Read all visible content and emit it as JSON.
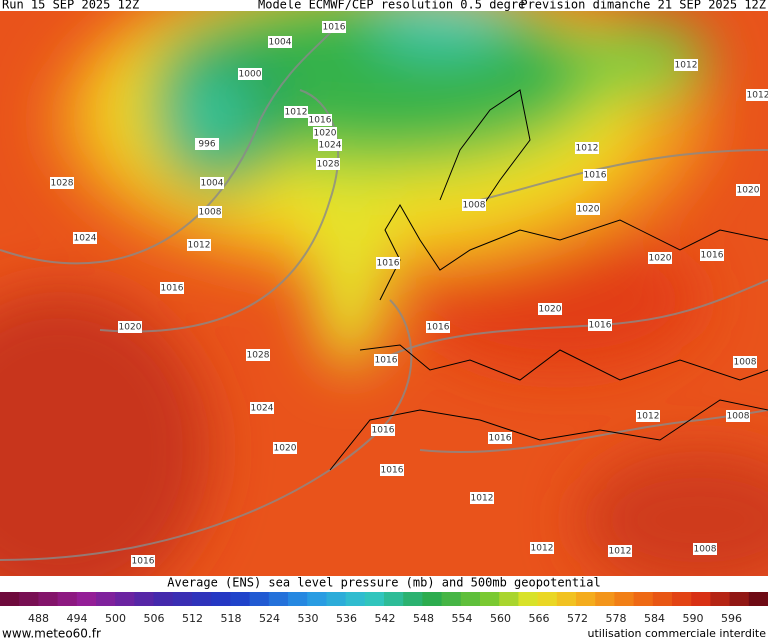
{
  "header": {
    "run": "Run 15 SEP 2025 12Z",
    "model": "Modele ECMWF/CEP resolution 0.5 degre",
    "forecast": "Prevision dimanche 21 SEP 2025 12Z"
  },
  "isobar_labels": [
    1004,
    1016,
    1000,
    1012,
    1016,
    1020,
    1024,
    1028,
    996,
    1004,
    1008,
    1012,
    1028,
    1024,
    1016,
    1020,
    1028,
    1024,
    1020,
    1016,
    1016,
    1016,
    1016,
    1016,
    1016,
    1016,
    1012,
    1012,
    1012,
    1008,
    1012,
    1008,
    1008,
    1016,
    1020,
    1020,
    1016,
    1020,
    1016,
    1012,
    1020,
    1012,
    1012,
    1008
  ],
  "legend": {
    "title": "Average (ENS) sea level pressure (mb) and 500mb geopotential",
    "ticks": [
      488,
      494,
      500,
      506,
      512,
      518,
      524,
      530,
      536,
      542,
      548,
      554,
      560,
      566,
      572,
      578,
      584,
      590,
      596
    ]
  },
  "footer": {
    "site": "www.meteo60.fr",
    "notice": "utilisation commerciale interdite"
  }
}
